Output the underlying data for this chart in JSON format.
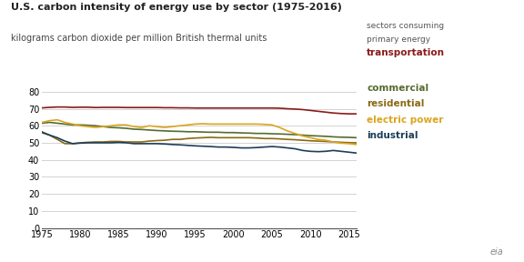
{
  "title": "U.S. carbon intensity of energy use by sector (1975-2016)",
  "subtitle": "kilograms carbon dioxide per million British thermal units",
  "ylim": [
    0,
    80
  ],
  "yticks": [
    0,
    10,
    20,
    30,
    40,
    50,
    60,
    70,
    80
  ],
  "xlim": [
    1975,
    2016
  ],
  "xticks": [
    1975,
    1980,
    1985,
    1990,
    1995,
    2000,
    2005,
    2010,
    2015
  ],
  "background_color": "#ffffff",
  "series": {
    "transportation": {
      "color": "#8B1A1A",
      "label": "transportation",
      "label_color": "#8B1A1A",
      "values": [
        70.5,
        70.8,
        71.0,
        71.0,
        70.8,
        70.9,
        70.9,
        70.7,
        70.8,
        70.8,
        70.8,
        70.7,
        70.7,
        70.7,
        70.7,
        70.7,
        70.6,
        70.6,
        70.5,
        70.5,
        70.4,
        70.4,
        70.4,
        70.4,
        70.4,
        70.4,
        70.4,
        70.4,
        70.4,
        70.4,
        70.4,
        70.3,
        70.0,
        69.8,
        69.5,
        69.0,
        68.5,
        68.0,
        67.5,
        67.2,
        67.0,
        67.0
      ]
    },
    "commercial": {
      "color": "#556B2F",
      "label": "commercial",
      "label_color": "#556B2F",
      "values": [
        61.5,
        62.0,
        61.5,
        61.0,
        60.5,
        60.5,
        60.3,
        60.0,
        59.5,
        59.0,
        58.8,
        58.5,
        58.0,
        57.8,
        57.5,
        57.2,
        57.0,
        56.8,
        56.7,
        56.5,
        56.5,
        56.3,
        56.2,
        56.2,
        56.0,
        56.0,
        55.8,
        55.7,
        55.5,
        55.5,
        55.3,
        55.2,
        55.0,
        54.8,
        54.5,
        54.2,
        54.0,
        53.8,
        53.5,
        53.3,
        53.2,
        53.0
      ]
    },
    "residential": {
      "color": "#8B6914",
      "label": "residential",
      "label_color": "#8B6914",
      "values": [
        56.5,
        54.5,
        52.0,
        49.5,
        49.5,
        50.0,
        50.3,
        50.5,
        50.5,
        50.8,
        50.8,
        50.5,
        50.5,
        50.5,
        51.0,
        51.3,
        51.5,
        52.0,
        52.0,
        52.5,
        52.8,
        53.0,
        53.2,
        53.0,
        53.0,
        53.0,
        53.0,
        53.0,
        52.8,
        52.5,
        52.5,
        52.3,
        52.0,
        51.8,
        51.5,
        51.2,
        51.0,
        50.8,
        50.5,
        50.3,
        50.1,
        50.0
      ]
    },
    "electric_power": {
      "color": "#DAA520",
      "label": "electric power",
      "label_color": "#DAA520",
      "values": [
        62.0,
        63.0,
        63.5,
        62.0,
        61.0,
        60.0,
        59.5,
        59.0,
        59.5,
        60.0,
        60.5,
        60.5,
        59.5,
        59.0,
        60.0,
        59.5,
        59.0,
        59.5,
        60.0,
        60.5,
        61.0,
        61.2,
        61.0,
        61.0,
        61.0,
        61.0,
        61.0,
        61.0,
        61.0,
        60.8,
        60.5,
        59.0,
        57.0,
        55.5,
        54.0,
        53.0,
        52.0,
        51.5,
        50.5,
        49.8,
        49.5,
        49.0
      ]
    },
    "industrial": {
      "color": "#1C3D5A",
      "label": "industrial",
      "label_color": "#1C3D5A",
      "values": [
        56.0,
        54.5,
        53.0,
        51.0,
        49.5,
        49.8,
        50.0,
        50.0,
        50.0,
        50.0,
        50.2,
        50.0,
        49.5,
        49.5,
        49.5,
        49.5,
        49.3,
        49.0,
        48.8,
        48.5,
        48.2,
        48.0,
        47.8,
        47.5,
        47.5,
        47.3,
        47.0,
        47.0,
        47.2,
        47.5,
        47.8,
        47.5,
        47.0,
        46.5,
        45.5,
        45.0,
        44.8,
        45.0,
        45.5,
        45.0,
        44.5,
        44.0
      ]
    }
  }
}
